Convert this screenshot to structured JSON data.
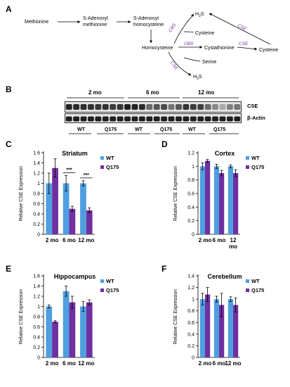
{
  "panels": {
    "a": "A",
    "b": "B",
    "c": "C",
    "d": "D",
    "e": "E",
    "f": "F"
  },
  "pathway": {
    "methionine": "Methionine",
    "sam_1": "S-Adenosyl",
    "sam_2": "methionine",
    "sah_1": "S-Adenosyl",
    "sah_2": "homocysteine",
    "homocysteine": "Homocysteine",
    "cystathionine": "Cystathionine",
    "cysteine_mid": "Cysteine",
    "cysteine_right": "Cysteine",
    "serine": "Serine",
    "h2s_top": "H",
    "h2s_bottom": "H",
    "sub2": "2",
    "s": "S",
    "cbs_1": "CBS",
    "cbs_2": "CBS",
    "cse_1": "CSE",
    "cse_2": "CSE",
    "cse_3": "CSE",
    "enzyme_color": "#7030a0"
  },
  "blot": {
    "ages": [
      "2 mo",
      "6 mo",
      "12 mo"
    ],
    "genotypes": [
      "WT",
      "Q175",
      "WT",
      "Q175",
      "WT",
      "Q175"
    ],
    "cse_label": "CSE",
    "actin_label": "β-Actin",
    "cse_band_intensity": [
      0.92,
      0.9,
      0.88,
      0.86,
      0.84,
      0.86,
      0.82,
      0.85,
      0.95,
      0.93,
      0.9,
      0.6,
      0.7,
      0.75,
      0.55,
      0.7,
      0.85,
      0.82,
      0.8,
      0.6,
      0.45,
      0.3,
      0.5,
      0.55
    ],
    "actin_band_intensity": 0.95
  },
  "chart_data": [
    {
      "type": "bar",
      "title": "Striatum",
      "ylabel": "Relative CSE Expression",
      "categories": [
        "2 mo",
        "6 mo",
        "12 mo"
      ],
      "ylim": [
        0,
        1.6
      ],
      "yticks": [
        "0",
        "0.2",
        "0.4",
        "0.6",
        "0.8",
        "1",
        "1.2",
        "1.4",
        "1.6"
      ],
      "series": [
        {
          "name": "WT",
          "color": "#4f9fe0",
          "values": [
            1.0,
            1.0,
            1.0
          ],
          "errors": [
            0.2,
            0.15,
            0.05
          ]
        },
        {
          "name": "Q175",
          "color": "#7030a0",
          "values": [
            1.3,
            0.5,
            0.47
          ],
          "errors": [
            0.18,
            0.05,
            0.05
          ]
        }
      ],
      "annotations": [
        "***",
        "***"
      ],
      "legend": "top-right"
    },
    {
      "type": "bar",
      "title": "Cortex",
      "ylabel": "Relative CSE Expression",
      "categories": [
        "2 mo",
        "6 mo",
        "12\nmo"
      ],
      "ylim": [
        0,
        1.2
      ],
      "yticks": [
        "0",
        "0.2",
        "0.4",
        "0.6",
        "0.8",
        "1",
        "1.2"
      ],
      "series": [
        {
          "name": "WT",
          "color": "#4f9fe0",
          "values": [
            1.0,
            1.0,
            1.0
          ],
          "errors": [
            0.05,
            0.03,
            0.02
          ]
        },
        {
          "name": "Q175",
          "color": "#7030a0",
          "values": [
            1.08,
            0.9,
            0.9
          ],
          "errors": [
            0.02,
            0.04,
            0.05
          ]
        }
      ],
      "legend": "top-right"
    },
    {
      "type": "bar",
      "title": "Hippocampus",
      "ylabel": "Relative CSE Expression",
      "categories": [
        "2 mo",
        "6 mo",
        "12 mo"
      ],
      "ylim": [
        0,
        1.6
      ],
      "yticks": [
        "0",
        "0.2",
        "0.4",
        "0.6",
        "0.8",
        "1",
        "1.2",
        "1.4",
        "1.6"
      ],
      "series": [
        {
          "name": "WT",
          "color": "#4f9fe0",
          "values": [
            1.0,
            1.3,
            1.0
          ],
          "errors": [
            0.03,
            0.1,
            0.1
          ]
        },
        {
          "name": "Q175",
          "color": "#7030a0",
          "values": [
            0.7,
            1.08,
            1.08
          ],
          "errors": [
            0.02,
            0.12,
            0.05
          ]
        }
      ],
      "legend": "top-right"
    },
    {
      "type": "bar",
      "title": "Cerebellum",
      "ylabel": "Relative CSE Expression",
      "categories": [
        "2 mo",
        "6 mo",
        "12 mo"
      ],
      "ylim": [
        0,
        1.4
      ],
      "yticks": [
        "0",
        "0.2",
        "0.4",
        "0.6",
        "0.8",
        "1",
        "1.2",
        "1.4"
      ],
      "series": [
        {
          "name": "WT",
          "color": "#4f9fe0",
          "values": [
            1.0,
            1.0,
            1.0
          ],
          "errors": [
            0.1,
            0.05,
            0.04
          ]
        },
        {
          "name": "Q175",
          "color": "#7030a0",
          "values": [
            1.08,
            0.9,
            0.9
          ],
          "errors": [
            0.12,
            0.2,
            0.12
          ]
        }
      ],
      "legend": "top-right"
    }
  ]
}
